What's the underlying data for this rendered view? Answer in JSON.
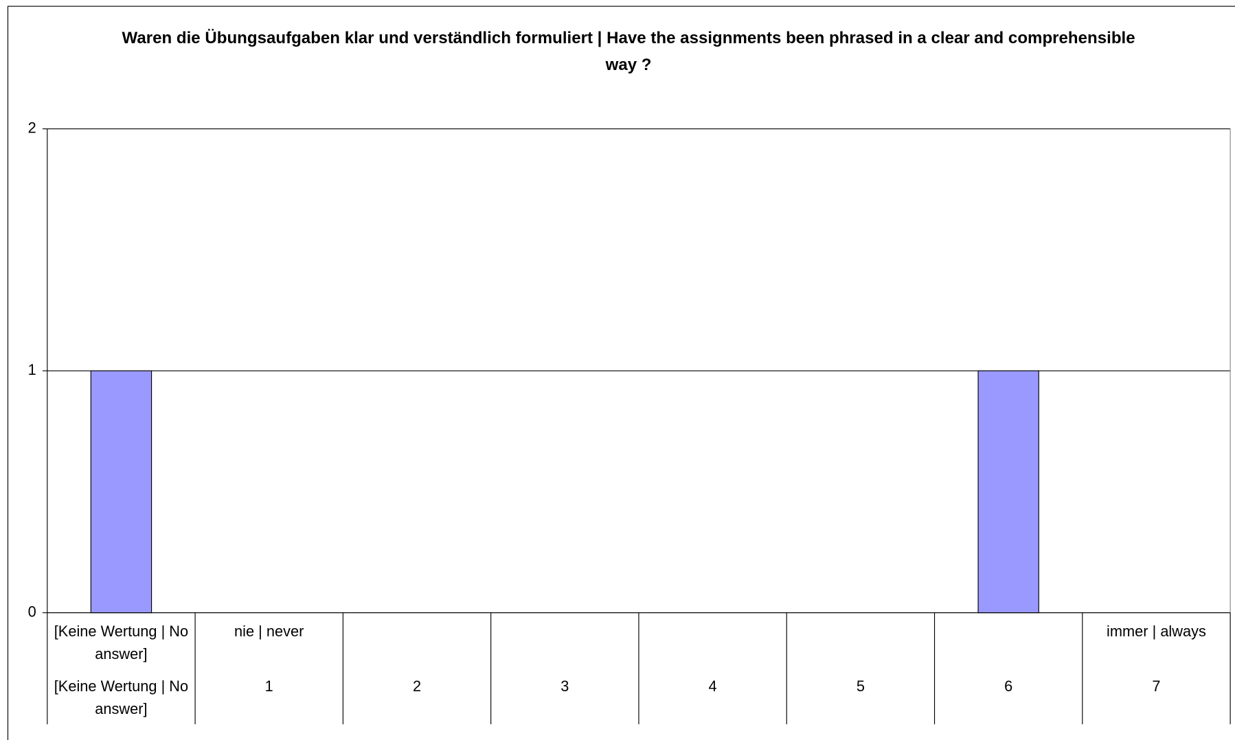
{
  "chart_data": {
    "type": "bar",
    "title": "Waren die Übungsaufgaben klar und verständlich formuliert | Have the assignments been phrased in a clear and comprehensible way ?",
    "scale_labels": [
      "[Keine Wertung | No answer]",
      "nie | never",
      null,
      null,
      null,
      null,
      null,
      "immer | always"
    ],
    "categories": [
      "[Keine Wertung | No answer]",
      "1",
      "2",
      "3",
      "4",
      "5",
      "6",
      "7"
    ],
    "values": [
      1,
      0,
      0,
      0,
      0,
      0,
      1,
      0
    ],
    "color": "#9999ff",
    "ylim": [
      0,
      2
    ],
    "yticks": [
      0,
      1,
      2
    ],
    "grid": true
  }
}
